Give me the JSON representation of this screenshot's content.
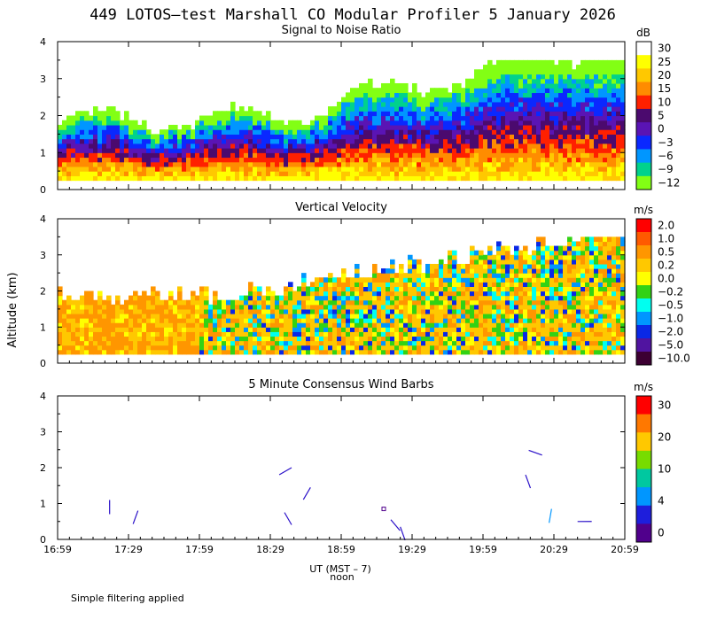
{
  "figure": {
    "title": "449 LOTOS—test Marshall CO Modular Profiler  5 January 2026",
    "ylabel": "Altitude (km)",
    "xlabel": "UT  (MST – 7)",
    "noon_label": "noon",
    "footnote": "Simple filtering applied",
    "x_ticks": [
      "16:59",
      "17:29",
      "17:59",
      "18:29",
      "18:59",
      "19:29",
      "19:59",
      "20:29",
      "20:59"
    ]
  },
  "chart_data": [
    {
      "type": "heatmap",
      "title": "Signal to Noise Ratio",
      "ylabel": "Altitude (km)",
      "ylim": [
        0,
        4
      ],
      "y_ticks": [
        "0",
        "1",
        "2",
        "3",
        "4"
      ],
      "colorbar": {
        "unit": "dB",
        "labels": [
          "30",
          "25",
          "20",
          "15",
          "10",
          "5",
          "0",
          "−3",
          "−6",
          "−9",
          "−12"
        ],
        "colors": [
          "#ffffff",
          "#ffff00",
          "#ffc800",
          "#ff8c00",
          "#ff2000",
          "#4b0a6e",
          "#5a14b4",
          "#0a28ff",
          "#0096ff",
          "#00d28c",
          "#82ff14"
        ]
      }
    },
    {
      "type": "heatmap",
      "title": "Vertical Velocity",
      "ylabel": "Altitude (km)",
      "ylim": [
        0,
        4
      ],
      "y_ticks": [
        "0",
        "1",
        "2",
        "3",
        "4"
      ],
      "colorbar": {
        "unit": "m/s",
        "labels": [
          "2.0",
          "1.0",
          "0.5",
          "0.2",
          "0.0",
          "−0.2",
          "−0.5",
          "−1.0",
          "−2.0",
          "−5.0",
          "−10.0"
        ],
        "colors": [
          "#ff0000",
          "#ff5a00",
          "#ff9600",
          "#ffc800",
          "#ffff00",
          "#32d214",
          "#00fff0",
          "#0096ff",
          "#0a28e6",
          "#5014a0",
          "#3c0032"
        ]
      }
    },
    {
      "type": "scatter",
      "title": "5 Minute Consensus Wind Barbs",
      "ylabel": "Altitude (km)",
      "ylim": [
        0,
        4
      ],
      "y_ticks": [
        "0",
        "1",
        "2",
        "3",
        "4"
      ],
      "colorbar": {
        "unit": "m/s",
        "labels": [
          "30",
          "20",
          "10",
          "4",
          "0"
        ],
        "colors": [
          "#ff0000",
          "#ff7800",
          "#ffc800",
          "#78dc00",
          "#00c8a0",
          "#0096ff",
          "#1e1edc",
          "#50008c"
        ]
      },
      "barbs": [
        {
          "time": "17:21",
          "alt_km": 1.1,
          "dir_deg": 180,
          "speed_ms": 3
        },
        {
          "time": "17:33",
          "alt_km": 0.8,
          "dir_deg": 200,
          "speed_ms": 3
        },
        {
          "time": "18:38",
          "alt_km": 2.0,
          "dir_deg": 240,
          "speed_ms": 3
        },
        {
          "time": "18:46",
          "alt_km": 1.45,
          "dir_deg": 210,
          "speed_ms": 3
        },
        {
          "time": "18:35",
          "alt_km": 0.75,
          "dir_deg": 150,
          "speed_ms": 3
        },
        {
          "time": "19:20",
          "alt_km": 0.55,
          "dir_deg": 140,
          "speed_ms": 3
        },
        {
          "time": "19:24",
          "alt_km": 0.35,
          "dir_deg": 160,
          "speed_ms": 3
        },
        {
          "time": "19:17",
          "alt_km": 0.85,
          "dir_deg": 0,
          "speed_ms": 0
        },
        {
          "time": "20:17",
          "alt_km": 1.8,
          "dir_deg": 160,
          "speed_ms": 3
        },
        {
          "time": "20:24",
          "alt_km": 2.35,
          "dir_deg": 290,
          "speed_ms": 3
        },
        {
          "time": "20:28",
          "alt_km": 0.85,
          "dir_deg": 190,
          "speed_ms": 5
        },
        {
          "time": "20:45",
          "alt_km": 0.5,
          "dir_deg": 270,
          "speed_ms": 3
        }
      ]
    }
  ]
}
